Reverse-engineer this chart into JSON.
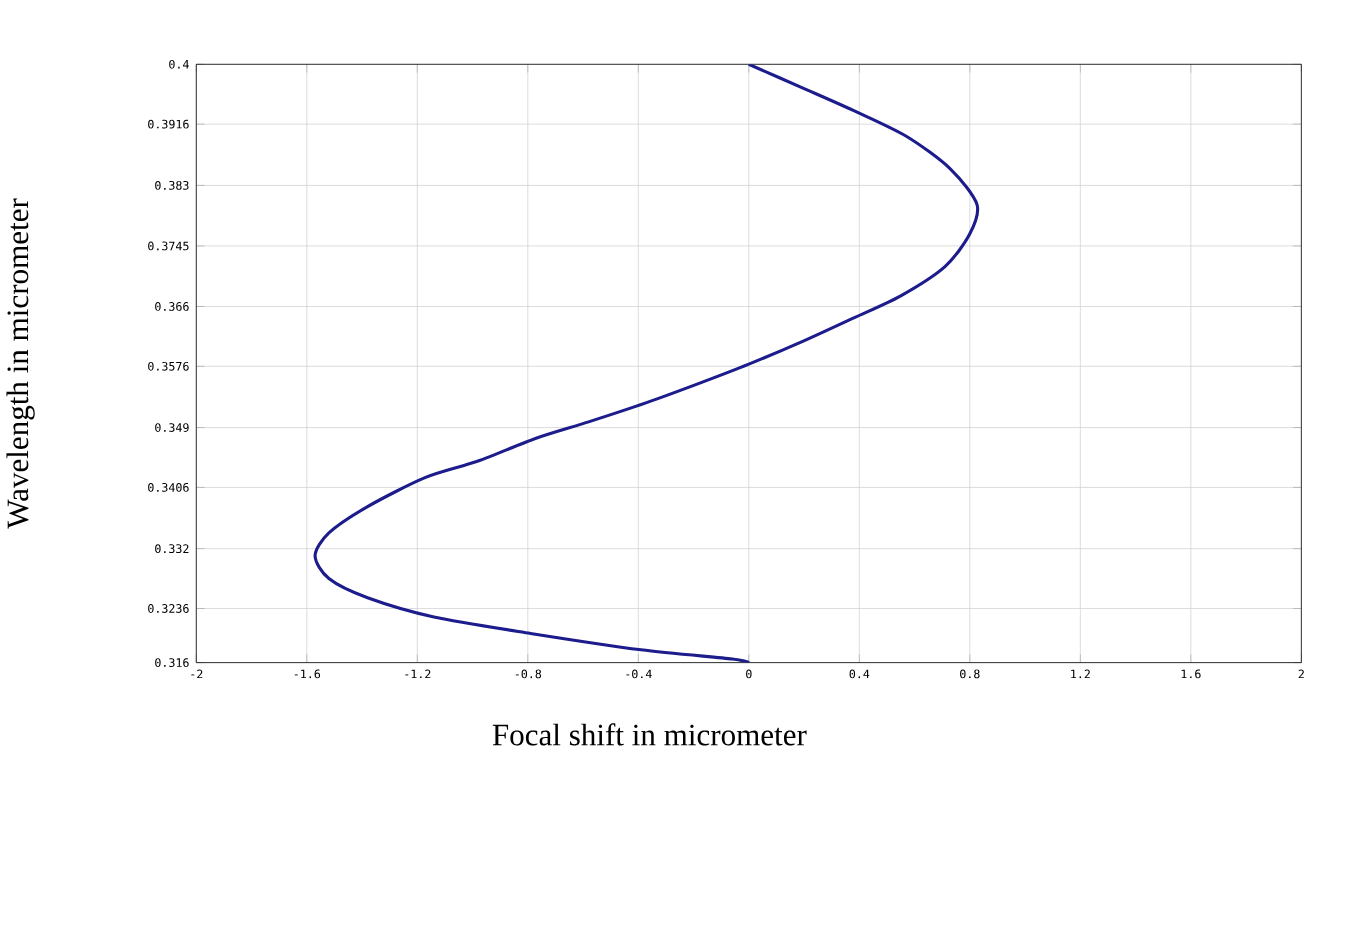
{
  "chart_data": {
    "type": "line",
    "xlabel": "Focal shift in micrometer",
    "ylabel": "Wavelength in micrometer",
    "xlim": [
      -2,
      2
    ],
    "ylim": [
      0.316,
      0.4
    ],
    "xticks": [
      -2,
      -1.6,
      -1.2,
      -0.8,
      -0.4,
      0,
      0.4,
      0.8,
      1.2,
      1.6,
      2
    ],
    "yticks": [
      0.316,
      0.3236,
      0.332,
      0.3406,
      0.349,
      0.3576,
      0.366,
      0.3745,
      0.383,
      0.3916,
      0.4
    ],
    "grid": true,
    "series": [
      {
        "color": "#1c1c8c",
        "x": [
          0,
          0.194,
          0.38,
          0.57,
          0.73,
          0.826,
          0.8,
          0.71,
          0.55,
          0.38,
          0.195,
          0,
          -0.18,
          -0.37,
          -0.58,
          -0.77,
          -0.98,
          -1.17,
          -1.38,
          -1.52,
          -1.57,
          -1.52,
          -1.38,
          -1.14,
          -0.79,
          -0.39,
          -0.06,
          0
        ],
        "values": [
          0.4,
          0.3967,
          0.3935,
          0.3899,
          0.3853,
          0.3803,
          0.3762,
          0.3716,
          0.3675,
          0.3644,
          0.3611,
          0.3579,
          0.3552,
          0.3525,
          0.3498,
          0.3475,
          0.3443,
          0.342,
          0.3379,
          0.3342,
          0.331,
          0.3278,
          0.3251,
          0.3224,
          0.3201,
          0.3178,
          0.3165,
          0.316
        ]
      }
    ]
  }
}
